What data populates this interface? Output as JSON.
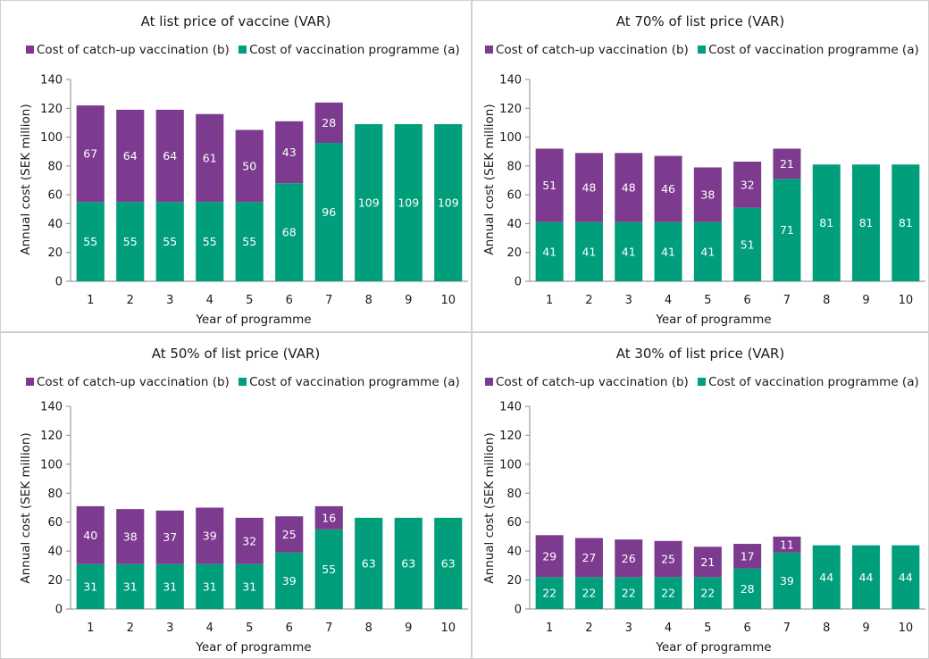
{
  "chart_data": [
    {
      "type": "bar",
      "stacked": true,
      "title": "At list price of vaccine (VAR)",
      "xlabel": "Year of programme",
      "ylabel": "Annual cost (SEK million)",
      "ylim": [
        0,
        140
      ],
      "yticks": [
        "0",
        "20",
        "40",
        "60",
        "80",
        "100",
        "120",
        "140"
      ],
      "categories": [
        "1",
        "2",
        "3",
        "4",
        "5",
        "6",
        "7",
        "8",
        "9",
        "10"
      ],
      "legend_position": "top",
      "series": [
        {
          "name": "Cost of vaccination programme (a)",
          "color": "#009e7a",
          "values": [
            55,
            55,
            55,
            55,
            55,
            68,
            96,
            109,
            109,
            109
          ]
        },
        {
          "name": "Cost of catch-up vaccination (b)",
          "color": "#7d3b8f",
          "values": [
            67,
            64,
            64,
            61,
            50,
            43,
            28,
            0,
            0,
            0
          ]
        }
      ]
    },
    {
      "type": "bar",
      "stacked": true,
      "title": "At 70% of list price (VAR)",
      "xlabel": "Year of programme",
      "ylabel": "Annual cost (SEK million)",
      "ylim": [
        0,
        140
      ],
      "yticks": [
        "0",
        "20",
        "40",
        "60",
        "80",
        "100",
        "120",
        "140"
      ],
      "categories": [
        "1",
        "2",
        "3",
        "4",
        "5",
        "6",
        "7",
        "8",
        "9",
        "10"
      ],
      "legend_position": "top",
      "series": [
        {
          "name": "Cost of vaccination programme (a)",
          "color": "#009e7a",
          "values": [
            41,
            41,
            41,
            41,
            41,
            51,
            71,
            81,
            81,
            81
          ]
        },
        {
          "name": "Cost of catch-up vaccination (b)",
          "color": "#7d3b8f",
          "values": [
            51,
            48,
            48,
            46,
            38,
            32,
            21,
            0,
            0,
            0
          ]
        }
      ]
    },
    {
      "type": "bar",
      "stacked": true,
      "title": "At 50% of list price (VAR)",
      "xlabel": "Year of programme",
      "ylabel": "Annual cost (SEK million)",
      "ylim": [
        0,
        140
      ],
      "yticks": [
        "0",
        "20",
        "40",
        "60",
        "80",
        "100",
        "120",
        "140"
      ],
      "categories": [
        "1",
        "2",
        "3",
        "4",
        "5",
        "6",
        "7",
        "8",
        "9",
        "10"
      ],
      "legend_position": "top",
      "series": [
        {
          "name": "Cost of vaccination programme (a)",
          "color": "#009e7a",
          "values": [
            31,
            31,
            31,
            31,
            31,
            39,
            55,
            63,
            63,
            63
          ]
        },
        {
          "name": "Cost of catch-up vaccination (b)",
          "color": "#7d3b8f",
          "values": [
            40,
            38,
            37,
            39,
            32,
            25,
            16,
            0,
            0,
            0
          ]
        }
      ]
    },
    {
      "type": "bar",
      "stacked": true,
      "title": "At 30% of list price (VAR)",
      "xlabel": "Year of programme",
      "ylabel": "Annual cost (SEK million)",
      "ylim": [
        0,
        140
      ],
      "yticks": [
        "0",
        "20",
        "40",
        "60",
        "80",
        "100",
        "120",
        "140"
      ],
      "categories": [
        "1",
        "2",
        "3",
        "4",
        "5",
        "6",
        "7",
        "8",
        "9",
        "10"
      ],
      "legend_position": "top",
      "series": [
        {
          "name": "Cost of vaccination programme (a)",
          "color": "#009e7a",
          "values": [
            22,
            22,
            22,
            22,
            22,
            28,
            39,
            44,
            44,
            44
          ]
        },
        {
          "name": "Cost of catch-up vaccination (b)",
          "color": "#7d3b8f",
          "values": [
            29,
            27,
            26,
            25,
            21,
            17,
            11,
            0,
            0,
            0
          ]
        }
      ]
    }
  ]
}
